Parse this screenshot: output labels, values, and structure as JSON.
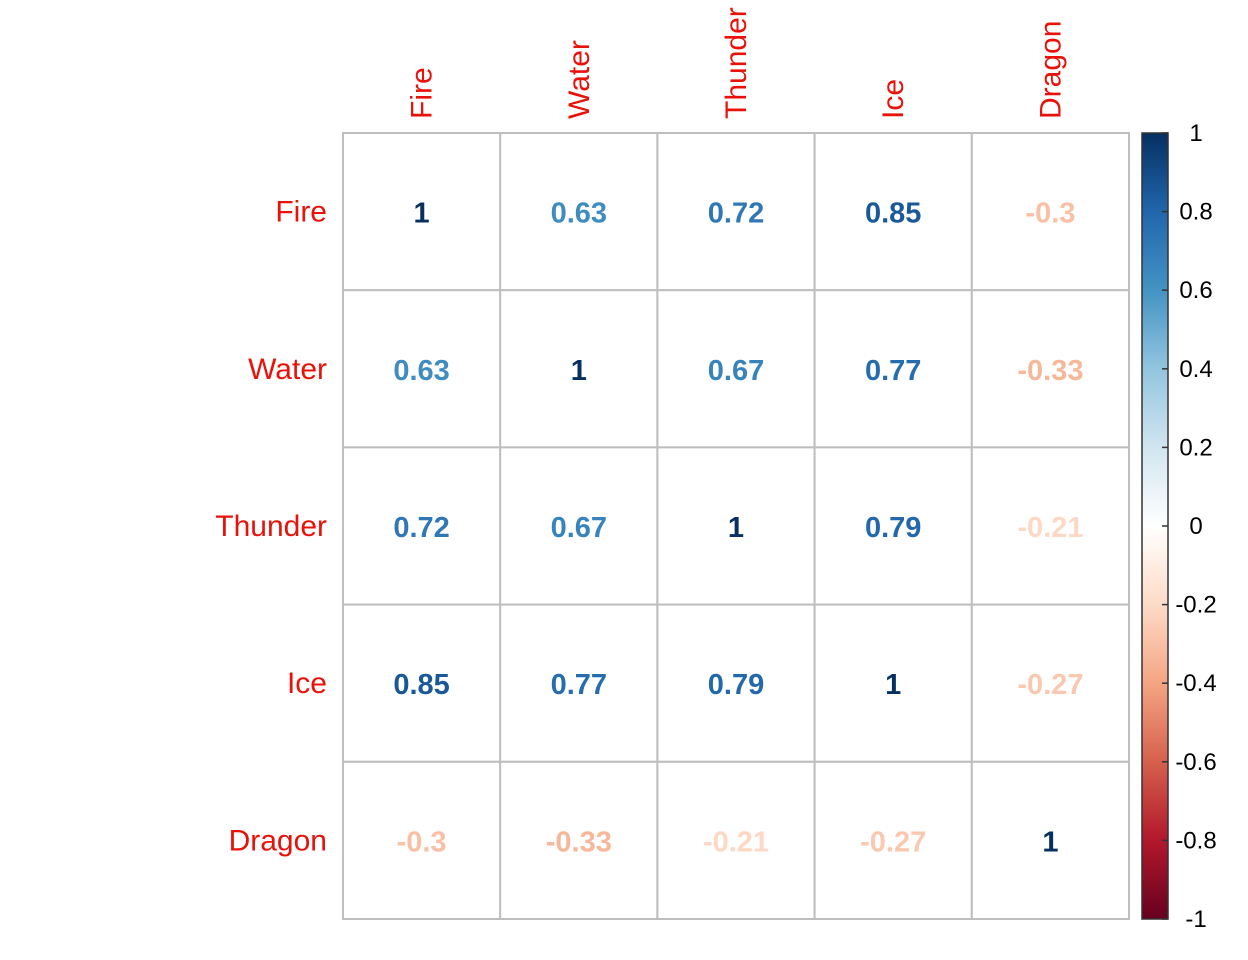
{
  "chart_data": {
    "type": "heatmap",
    "title": "",
    "variables": [
      "Fire",
      "Water",
      "Thunder",
      "Ice",
      "Dragon"
    ],
    "matrix": [
      [
        1,
        0.63,
        0.72,
        0.85,
        -0.3
      ],
      [
        0.63,
        1,
        0.67,
        0.77,
        -0.33
      ],
      [
        0.72,
        0.67,
        1,
        0.79,
        -0.21
      ],
      [
        0.85,
        0.77,
        0.79,
        1,
        -0.27
      ],
      [
        -0.3,
        -0.33,
        -0.21,
        -0.27,
        1
      ]
    ],
    "matrix_labels": [
      [
        "1",
        "0.63",
        "0.72",
        "0.85",
        "-0.3"
      ],
      [
        "0.63",
        "1",
        "0.67",
        "0.77",
        "-0.33"
      ],
      [
        "0.72",
        "0.67",
        "1",
        "0.79",
        "-0.21"
      ],
      [
        "0.85",
        "0.77",
        "0.79",
        "1",
        "-0.27"
      ],
      [
        "-0.3",
        "-0.33",
        "-0.21",
        "-0.27",
        "1"
      ]
    ],
    "colorbar": {
      "range": [
        -1,
        1
      ],
      "ticks": [
        "1",
        "0.8",
        "0.6",
        "0.4",
        "0.2",
        "0",
        "-0.2",
        "-0.4",
        "-0.6",
        "-0.8",
        "-1"
      ],
      "tick_values": [
        1,
        0.8,
        0.6,
        0.4,
        0.2,
        0,
        -0.2,
        -0.4,
        -0.6,
        -0.8,
        -1
      ],
      "placement": "right"
    },
    "label_color": "#E8120B",
    "grid_color": "#BEBEBE",
    "palette": [
      "#67001F",
      "#B2182B",
      "#D6604D",
      "#F4A582",
      "#FDDBC7",
      "#FFFFFF",
      "#D1E5F0",
      "#92C5DE",
      "#4393C3",
      "#2166AC",
      "#053061"
    ]
  }
}
